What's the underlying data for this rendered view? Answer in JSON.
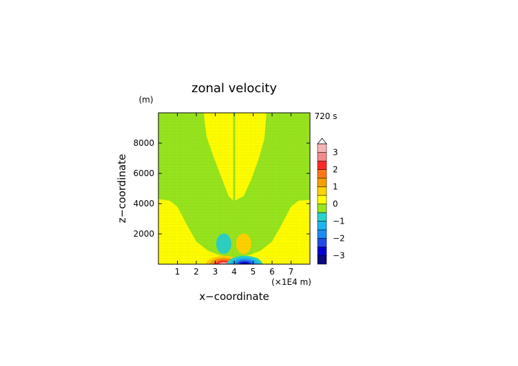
{
  "chart_data": {
    "type": "heatmap",
    "title": "zonal velocity",
    "time_label": "720 s",
    "xlabel": "x−coordinate",
    "ylabel": "z−coordinate",
    "x_unit": "(×1E4 m)",
    "y_unit": "(m)",
    "xlim": [
      0,
      8
    ],
    "ylim": [
      0,
      10000
    ],
    "x_ticks": [
      1,
      2,
      3,
      4,
      5,
      6,
      7
    ],
    "x_tick_labels": [
      "1",
      "2",
      "3",
      "4",
      "5",
      "6",
      "7"
    ],
    "y_ticks": [
      2000,
      4000,
      6000,
      8000
    ],
    "y_tick_labels": [
      "2000",
      "4000",
      "6000",
      "8000"
    ],
    "colorbar": {
      "levels": [
        -3.5,
        -3,
        -2.5,
        -2,
        -1.5,
        -1,
        -0.5,
        0,
        0.5,
        1,
        1.5,
        2,
        2.5,
        3,
        3.5
      ],
      "tick_values": [
        -3,
        -2,
        -1,
        0,
        1,
        2,
        3
      ],
      "tick_labels": [
        "−3",
        "−2",
        "−1",
        "0",
        "1",
        "2",
        "3"
      ],
      "colors": [
        "#0a0a7a",
        "#0000d2",
        "#1e4be6",
        "#1e8cf0",
        "#1eb4f0",
        "#28d2c8",
        "#96e61e",
        "#ffff00",
        "#ffd200",
        "#f5a000",
        "#ff7814",
        "#ff2828",
        "#f08c8c",
        "#f5b4b4"
      ],
      "extend": "max"
    },
    "features": [
      {
        "name": "upper-left-zero-region",
        "value": 0.25
      },
      {
        "name": "upper-right-zero-region",
        "value": 0.25
      },
      {
        "name": "left-negative-lobe",
        "value": -0.9,
        "x": 3.45,
        "z": 1350
      },
      {
        "name": "right-positive-lobe",
        "value": 0.9,
        "x": 4.5,
        "z": 1350
      },
      {
        "name": "surface-positive-core",
        "value": 3.0,
        "x": 3.45,
        "z": 150
      },
      {
        "name": "surface-negative-core",
        "value": -3.0,
        "x": 4.55,
        "z": 150
      }
    ]
  }
}
